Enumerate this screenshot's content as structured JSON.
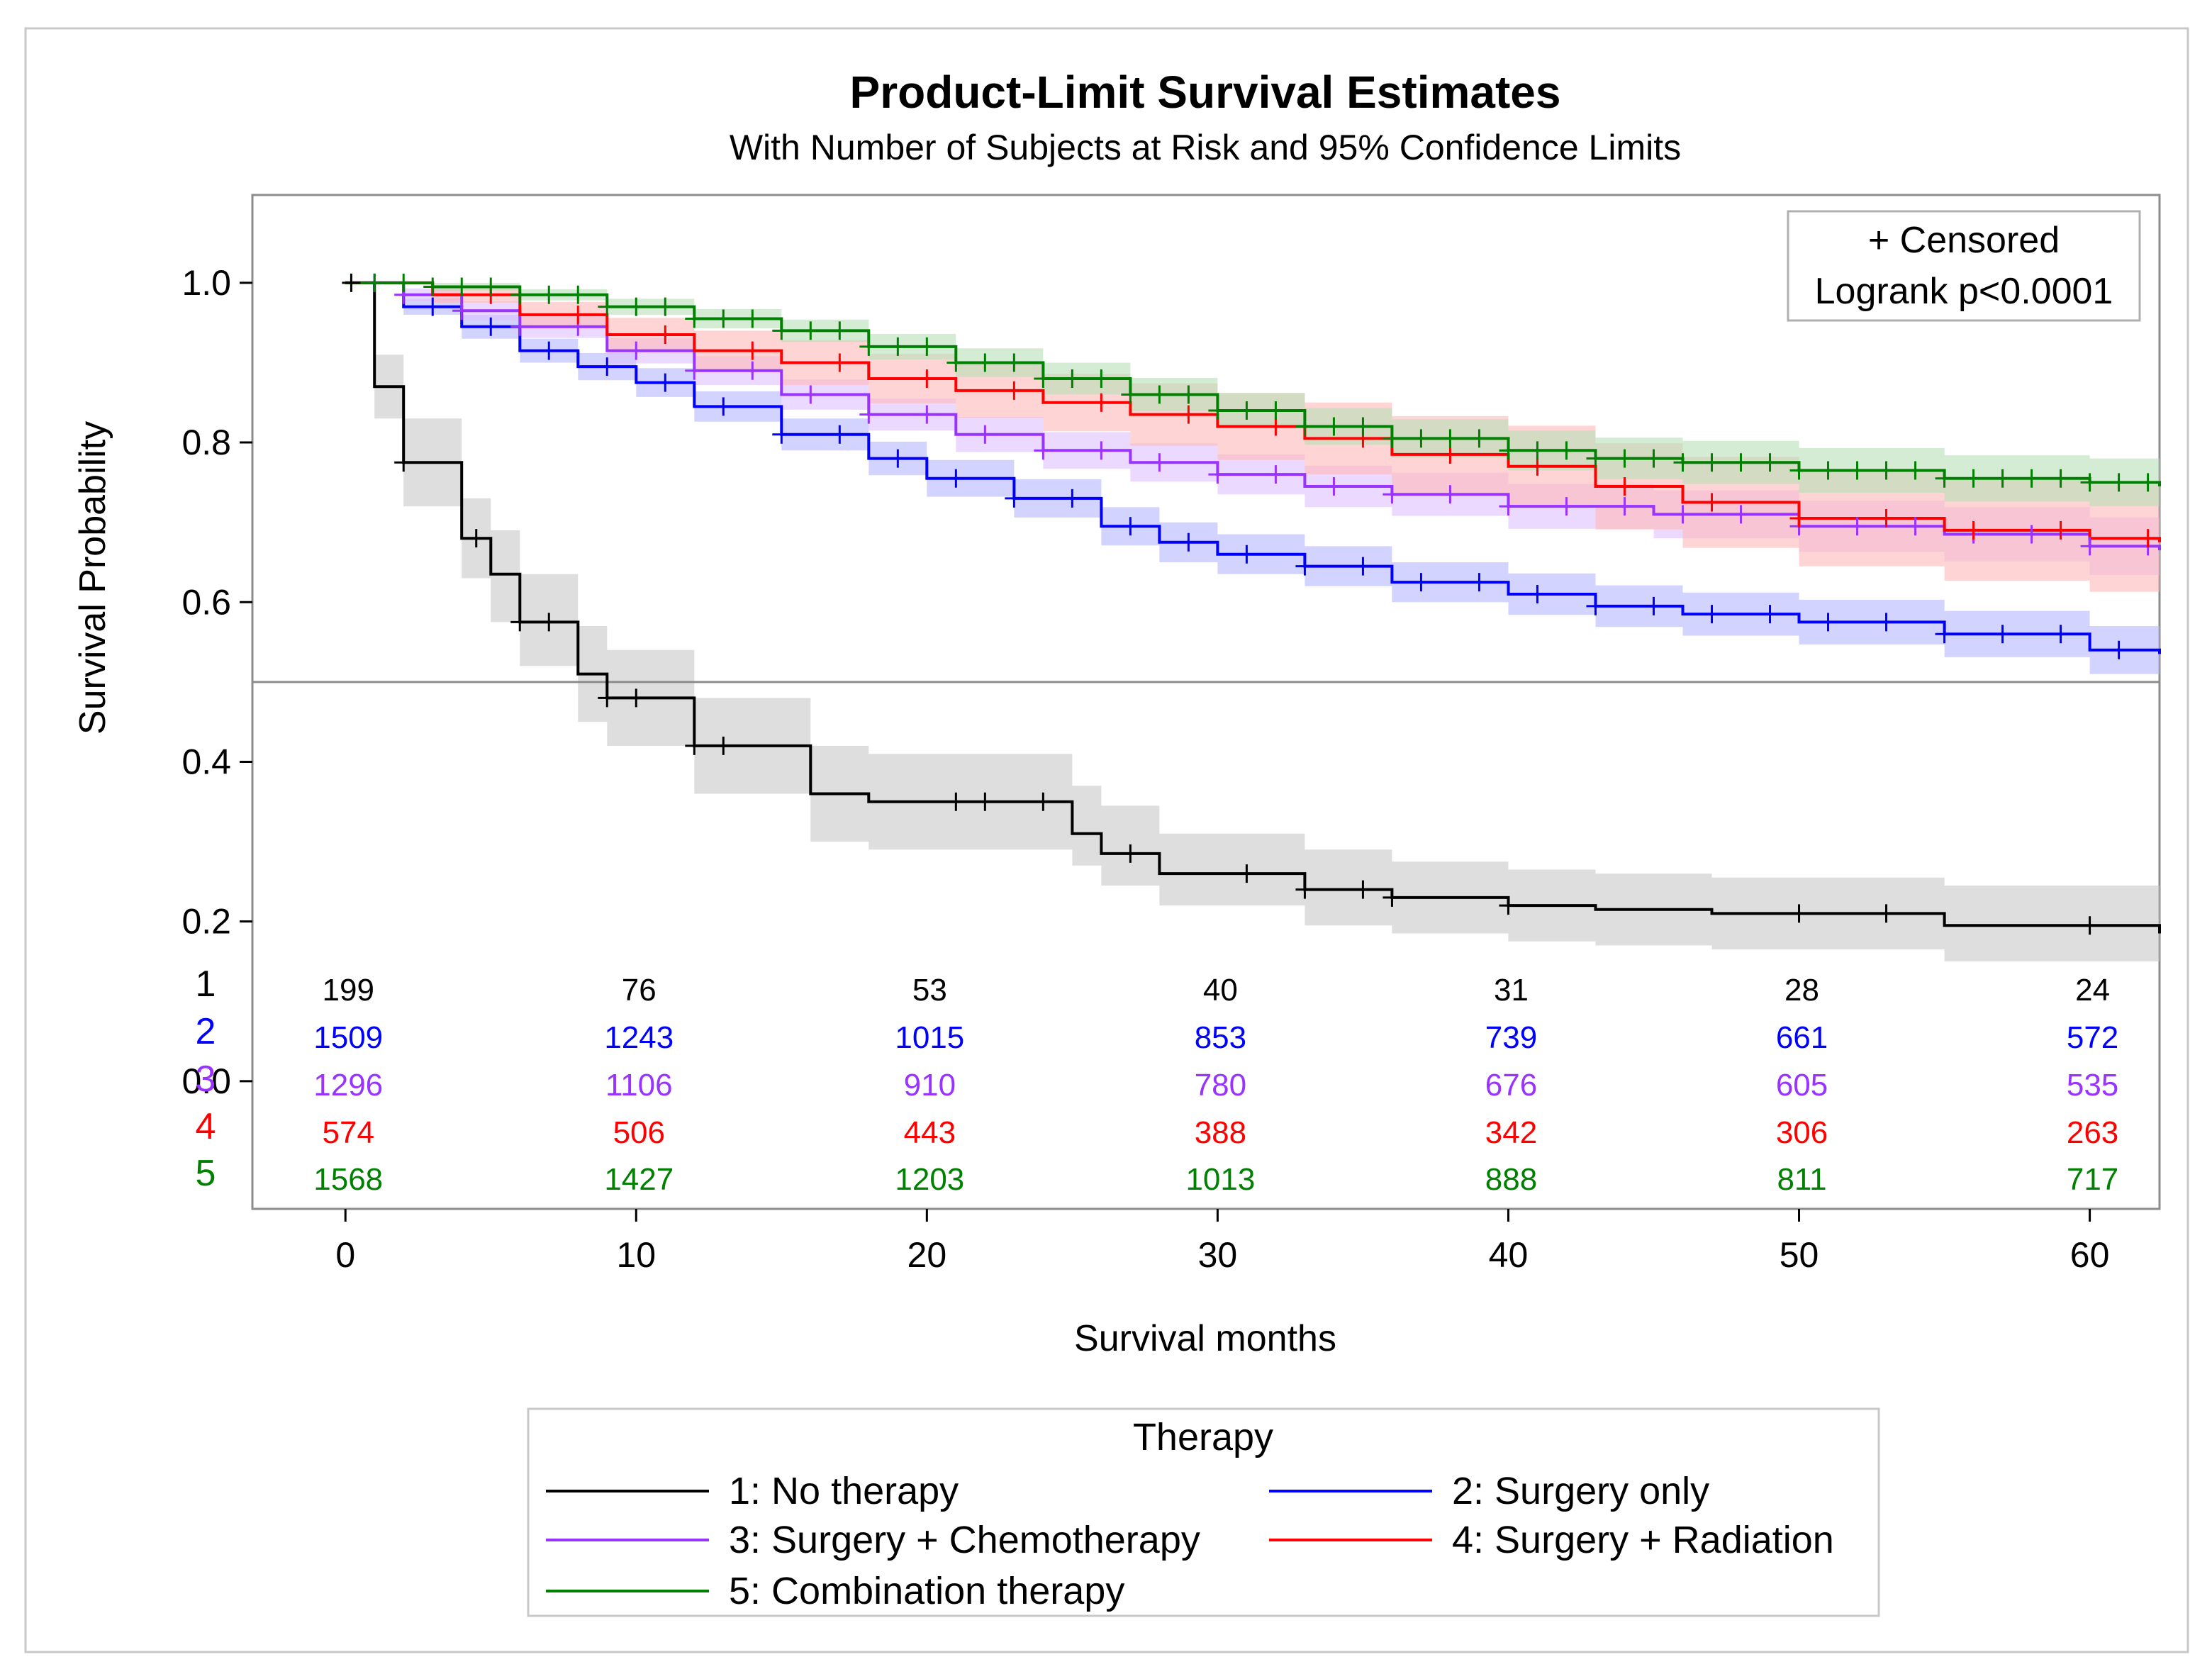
{
  "chart_data": {
    "type": "line",
    "title": "Product-Limit Survival Estimates",
    "subtitle": "With Number of Subjects at Risk and 95% Confidence Limits",
    "xlabel": "Survival months",
    "ylabel": "Survival Probability",
    "xlim": [
      -3.2,
      62.4
    ],
    "ylim": [
      -0.16,
      1.11
    ],
    "xticks": [
      "0",
      "10",
      "20",
      "30",
      "40",
      "50",
      "60"
    ],
    "yticks": [
      "0.0",
      "0.2",
      "0.4",
      "0.6",
      "0.8",
      "1.0"
    ],
    "reference_line_y": 0.5,
    "inset": {
      "line1": "+ Censored",
      "line2": "Logrank p<0.0001"
    },
    "legend": {
      "title": "Therapy",
      "position": "bottom"
    },
    "risk_times": [
      0,
      10,
      20,
      30,
      40,
      50,
      60
    ],
    "series": [
      {
        "id": "1",
        "name": "1: No therapy",
        "color": "#000000",
        "band_color": "#c8c8c8",
        "x": [
          0,
          1,
          2,
          4,
          5,
          6,
          8,
          9,
          12,
          16,
          18,
          25,
          26,
          28,
          33,
          36,
          40,
          43,
          47,
          55,
          62.4
        ],
        "y": [
          1.0,
          0.87,
          0.775,
          0.68,
          0.635,
          0.575,
          0.51,
          0.48,
          0.42,
          0.36,
          0.35,
          0.31,
          0.285,
          0.26,
          0.24,
          0.23,
          0.22,
          0.215,
          0.21,
          0.195,
          0.185
        ],
        "lower": [
          1.0,
          0.83,
          0.72,
          0.63,
          0.575,
          0.52,
          0.45,
          0.42,
          0.36,
          0.3,
          0.29,
          0.27,
          0.245,
          0.22,
          0.195,
          0.185,
          0.175,
          0.17,
          0.165,
          0.15,
          0.14
        ],
        "upper": [
          1.0,
          0.91,
          0.83,
          0.73,
          0.69,
          0.635,
          0.57,
          0.54,
          0.48,
          0.42,
          0.41,
          0.37,
          0.345,
          0.31,
          0.29,
          0.275,
          0.265,
          0.26,
          0.255,
          0.245,
          0.245
        ],
        "censored": [
          0.2,
          2,
          4.5,
          6,
          7,
          9,
          10,
          12,
          13,
          21,
          22,
          24,
          27,
          31,
          33,
          35,
          36,
          40,
          50,
          53,
          60
        ],
        "at_risk": [
          "199",
          "76",
          "53",
          "40",
          "31",
          "28",
          "24"
        ]
      },
      {
        "id": "2",
        "name": "2: Surgery only",
        "color": "#0000ff",
        "band_color": "#b5b5ff",
        "x": [
          0,
          2,
          4,
          6,
          8,
          10,
          12,
          15,
          18,
          20,
          23,
          26,
          28,
          30,
          33,
          36,
          40,
          43,
          46,
          50,
          55,
          60,
          62.4
        ],
        "y": [
          1.0,
          0.97,
          0.945,
          0.915,
          0.895,
          0.875,
          0.845,
          0.81,
          0.78,
          0.755,
          0.73,
          0.695,
          0.675,
          0.66,
          0.645,
          0.625,
          0.61,
          0.595,
          0.585,
          0.575,
          0.56,
          0.54,
          0.535
        ],
        "lower": [
          1.0,
          0.96,
          0.93,
          0.9,
          0.878,
          0.857,
          0.826,
          0.79,
          0.759,
          0.732,
          0.706,
          0.671,
          0.65,
          0.635,
          0.62,
          0.6,
          0.584,
          0.569,
          0.558,
          0.547,
          0.531,
          0.51,
          0.505
        ],
        "upper": [
          1.0,
          0.98,
          0.96,
          0.93,
          0.912,
          0.893,
          0.864,
          0.83,
          0.801,
          0.778,
          0.754,
          0.719,
          0.7,
          0.685,
          0.67,
          0.65,
          0.636,
          0.621,
          0.612,
          0.603,
          0.589,
          0.57,
          0.565
        ],
        "censored": [
          1,
          3,
          5,
          7,
          9,
          11,
          13,
          15,
          17,
          19,
          21,
          23,
          25,
          27,
          29,
          31,
          33,
          35,
          37,
          39,
          41,
          43,
          45,
          47,
          49,
          51,
          53,
          55,
          57,
          59,
          61
        ],
        "at_risk": [
          "1509",
          "1243",
          "1015",
          "853",
          "739",
          "661",
          "572"
        ]
      },
      {
        "id": "3",
        "name": "3: Surgery + Chemotherapy",
        "color": "#9933ff",
        "band_color": "#ddbfff",
        "x": [
          0,
          2,
          4,
          6,
          9,
          12,
          15,
          18,
          21,
          24,
          27,
          30,
          33,
          36,
          40,
          45,
          50,
          55,
          60,
          62.4
        ],
        "y": [
          1.0,
          0.985,
          0.965,
          0.945,
          0.915,
          0.89,
          0.86,
          0.835,
          0.81,
          0.79,
          0.775,
          0.76,
          0.745,
          0.735,
          0.72,
          0.71,
          0.695,
          0.685,
          0.67,
          0.665
        ],
        "lower": [
          1.0,
          0.977,
          0.953,
          0.931,
          0.899,
          0.872,
          0.841,
          0.815,
          0.788,
          0.767,
          0.751,
          0.735,
          0.719,
          0.708,
          0.692,
          0.68,
          0.663,
          0.651,
          0.634,
          0.628
        ],
        "upper": [
          1.0,
          0.993,
          0.977,
          0.959,
          0.931,
          0.908,
          0.879,
          0.855,
          0.832,
          0.813,
          0.799,
          0.785,
          0.771,
          0.762,
          0.748,
          0.74,
          0.727,
          0.719,
          0.706,
          0.702
        ],
        "censored": [
          2,
          4,
          6,
          8,
          10,
          12,
          14,
          16,
          18,
          20,
          22,
          24,
          26,
          28,
          30,
          32,
          34,
          36,
          38,
          40,
          42,
          44,
          46,
          48,
          50,
          52,
          54,
          56,
          58,
          60,
          62
        ],
        "at_risk": [
          "1296",
          "1106",
          "910",
          "780",
          "676",
          "605",
          "535"
        ]
      },
      {
        "id": "4",
        "name": "4: Surgery + Radiation",
        "color": "#ff0000",
        "band_color": "#ffb8b8",
        "x": [
          0,
          3,
          6,
          9,
          12,
          15,
          18,
          21,
          24,
          27,
          30,
          33,
          36,
          40,
          43,
          46,
          50,
          55,
          60,
          62.4
        ],
        "y": [
          1.0,
          0.985,
          0.96,
          0.935,
          0.915,
          0.9,
          0.88,
          0.865,
          0.85,
          0.835,
          0.82,
          0.805,
          0.785,
          0.77,
          0.745,
          0.725,
          0.705,
          0.69,
          0.68,
          0.675
        ],
        "lower": [
          1.0,
          0.975,
          0.944,
          0.914,
          0.89,
          0.872,
          0.849,
          0.831,
          0.814,
          0.796,
          0.778,
          0.76,
          0.737,
          0.719,
          0.691,
          0.668,
          0.645,
          0.627,
          0.613,
          0.606
        ],
        "upper": [
          1.0,
          0.995,
          0.976,
          0.956,
          0.94,
          0.928,
          0.911,
          0.899,
          0.886,
          0.874,
          0.862,
          0.85,
          0.833,
          0.821,
          0.799,
          0.782,
          0.765,
          0.753,
          0.747,
          0.744
        ],
        "censored": [
          5,
          8,
          11,
          14,
          17,
          20,
          23,
          26,
          29,
          32,
          35,
          38,
          41,
          44,
          47,
          50,
          53,
          56,
          59,
          62
        ],
        "at_risk": [
          "574",
          "506",
          "443",
          "388",
          "342",
          "306",
          "263"
        ]
      },
      {
        "id": "5",
        "name": "5: Combination therapy",
        "color": "#008000",
        "band_color": "#b6e0b6",
        "x": [
          0,
          3,
          6,
          9,
          12,
          15,
          18,
          21,
          24,
          27,
          30,
          33,
          36,
          40,
          43,
          46,
          50,
          55,
          60,
          62.4
        ],
        "y": [
          1.0,
          0.995,
          0.985,
          0.97,
          0.955,
          0.94,
          0.92,
          0.9,
          0.88,
          0.86,
          0.84,
          0.82,
          0.805,
          0.79,
          0.78,
          0.775,
          0.765,
          0.755,
          0.75,
          0.745
        ],
        "lower": [
          1.0,
          0.99,
          0.978,
          0.96,
          0.943,
          0.926,
          0.904,
          0.882,
          0.86,
          0.839,
          0.818,
          0.797,
          0.781,
          0.765,
          0.754,
          0.748,
          0.737,
          0.726,
          0.72,
          0.714
        ],
        "upper": [
          1.0,
          1.0,
          0.992,
          0.98,
          0.967,
          0.954,
          0.936,
          0.918,
          0.9,
          0.881,
          0.862,
          0.843,
          0.829,
          0.815,
          0.806,
          0.802,
          0.793,
          0.784,
          0.78,
          0.776
        ],
        "censored": [
          1,
          2,
          3,
          4,
          5,
          6,
          7,
          8,
          9,
          10,
          11,
          12,
          13,
          14,
          15,
          16,
          17,
          18,
          19,
          20,
          21,
          22,
          23,
          24,
          25,
          26,
          27,
          28,
          29,
          30,
          31,
          32,
          33,
          34,
          35,
          36,
          37,
          38,
          39,
          40,
          41,
          42,
          43,
          44,
          45,
          46,
          47,
          48,
          49,
          50,
          51,
          52,
          53,
          54,
          55,
          56,
          57,
          58,
          59,
          60,
          61,
          62
        ],
        "at_risk": [
          "1568",
          "1427",
          "1203",
          "1013",
          "888",
          "811",
          "717"
        ]
      }
    ]
  }
}
